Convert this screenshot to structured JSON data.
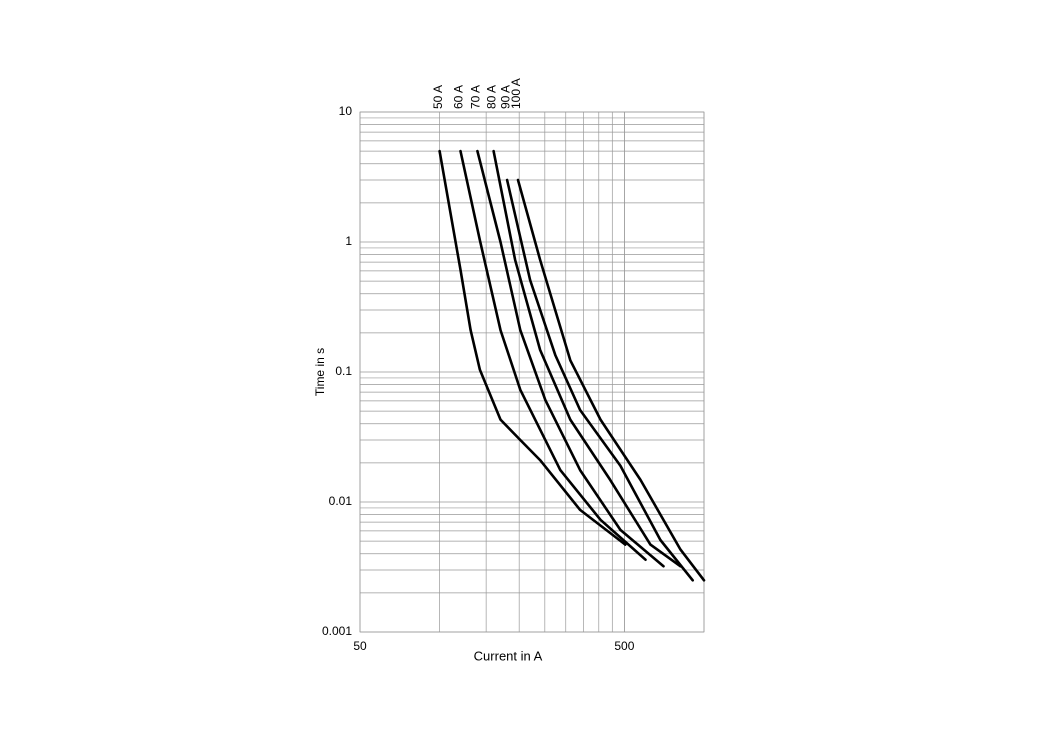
{
  "chart_data": {
    "type": "line",
    "xlabel": "Current in A",
    "ylabel": "Time in s",
    "xscale": "log",
    "yscale": "log",
    "xlim": [
      50,
      1000
    ],
    "ylim": [
      0.001,
      10
    ],
    "xticks": [
      50,
      500
    ],
    "yticks": [
      10,
      1,
      0.1,
      0.01,
      0.001
    ],
    "xgrid": [
      100,
      150,
      200,
      250,
      300,
      350,
      400,
      450,
      500,
      1000
    ],
    "grid": true,
    "series": [
      {
        "name": "50 A",
        "color": "#000000",
        "x": [
          100,
          120,
          131,
          142,
          170,
          202,
          240,
          340,
          504
        ],
        "values": [
          5,
          0.61,
          0.21,
          0.104,
          0.043,
          0.03,
          0.021,
          0.0087,
          0.0047
        ]
      },
      {
        "name": "60 A",
        "color": "#000000",
        "x": [
          120,
          142,
          170,
          202,
          286,
          406,
          601
        ],
        "values": [
          5,
          1.03,
          0.21,
          0.073,
          0.0176,
          0.0073,
          0.0036
        ]
      },
      {
        "name": "70 A",
        "color": "#000000",
        "x": [
          139,
          170,
          202,
          251,
          340,
          483,
          703
        ],
        "values": [
          5,
          1.0,
          0.21,
          0.061,
          0.0176,
          0.0061,
          0.0032
        ]
      },
      {
        "name": "80 A",
        "color": "#000000",
        "x": [
          160,
          193,
          240,
          312,
          442,
          627,
          815
        ],
        "values": [
          5,
          0.73,
          0.148,
          0.043,
          0.0148,
          0.0047,
          0.0032
        ]
      },
      {
        "name": "90 A",
        "color": "#000000",
        "x": [
          180,
          220,
          274,
          340,
          483,
          684,
          906
        ],
        "values": [
          3,
          0.51,
          0.135,
          0.051,
          0.019,
          0.0051,
          0.0025
        ]
      },
      {
        "name": "100 A",
        "color": "#000000",
        "x": [
          198,
          240,
          312,
          406,
          575,
          815,
          1000
        ],
        "values": [
          3,
          0.73,
          0.123,
          0.043,
          0.0148,
          0.0043,
          0.0025
        ]
      }
    ]
  }
}
